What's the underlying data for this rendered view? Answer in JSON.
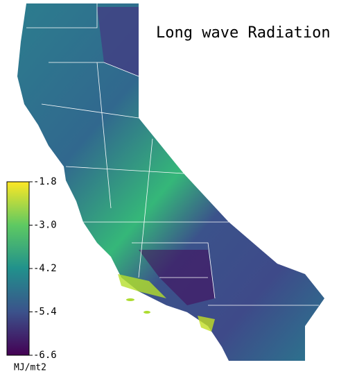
{
  "title": "Long wave Radiation",
  "colorbar": {
    "label": "MJ/mt2",
    "lim": [
      -6.6,
      -1.8
    ],
    "ticks": [
      -1.8,
      {
        "value": -3,
        "label": "-3.0"
      },
      -4.2,
      -5.4,
      -6.6
    ],
    "colormap": [
      "#440154",
      "#3b528b",
      "#21918c",
      "#5ec962",
      "#fde725"
    ]
  }
}
